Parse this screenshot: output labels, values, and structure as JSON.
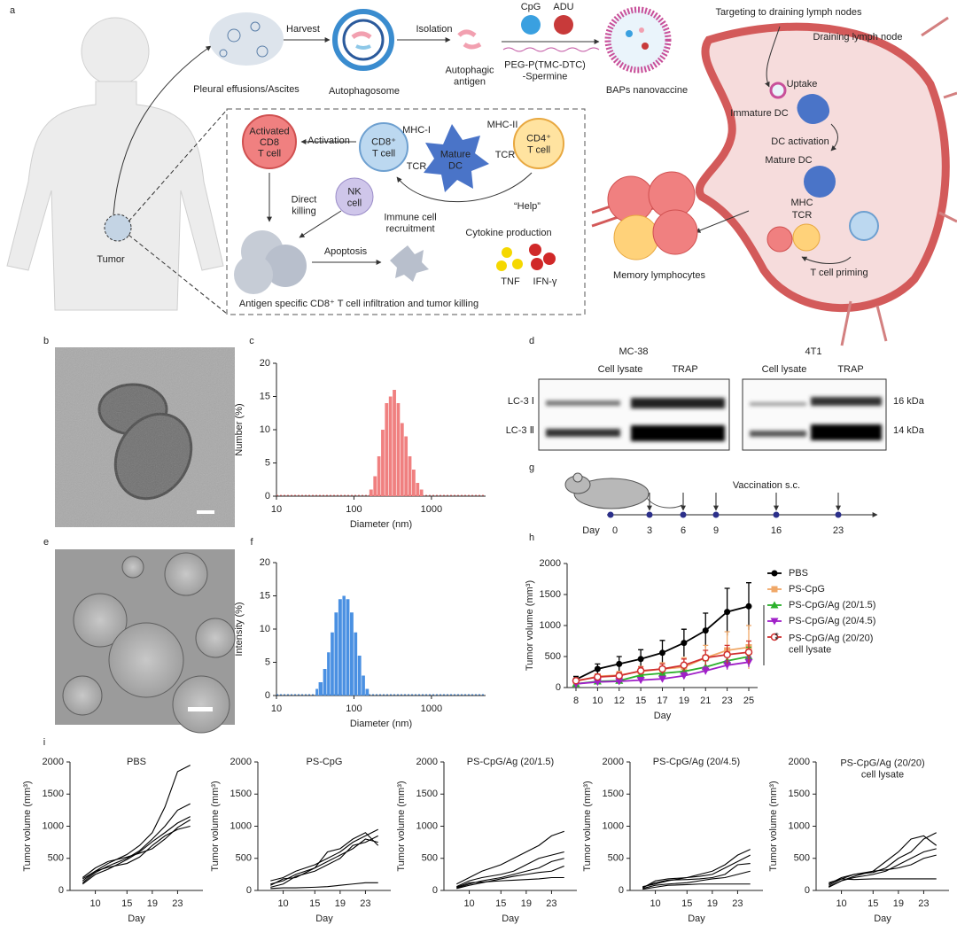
{
  "panel_labels": [
    "a",
    "b",
    "c",
    "d",
    "e",
    "f",
    "g",
    "h",
    "i"
  ],
  "diagram": {
    "harvest": "Harvest",
    "isolation": "Isolation",
    "cpg": "CpG",
    "adu": "ADU",
    "pleural": "Pleural effusions/Ascites",
    "autophagosome": "Autophagosome",
    "autophagic_antigen": "Autophagic\nantigen",
    "polymer": "PEG-P(TMC-DTC)\n-Spermine",
    "baps": "BAPs nanovaccine",
    "targeting": "Targeting to draining lymph nodes",
    "draining_ln": "Draining lymph node",
    "uptake": "Uptake",
    "immature_dc": "Immature DC",
    "dc_activation": "DC activation",
    "mature_dc": "Mature DC",
    "mhc": "MHC",
    "tcr": "TCR",
    "t_cell_priming": "T cell priming",
    "memory": "Memory lymphocytes",
    "tumor": "Tumor",
    "activation": "Activation",
    "mhc_i": "MHC-I",
    "mhc_ii": "MHC-II",
    "activated_cd8": "Activated\nCD8\nT cell",
    "cd8_t": "CD8⁺\nT cell",
    "mature_dc_box": "Mature\nDC",
    "cd4_t": "CD4⁺\nT cell",
    "tcr_1": "TCR",
    "tcr_2": "TCR",
    "direct_killing": "Direct\nkilling",
    "nk_cell": "NK\ncell",
    "recruitment": "Immune cell\nrecruitment",
    "help": "“Help”",
    "cytokine": "Cytokine production",
    "apoptosis": "Apoptosis",
    "tnf": "TNF",
    "ifn": "IFN-γ",
    "infiltration": "Antigen specific CD8⁺ T cell infiltration and tumor killing"
  },
  "blot": {
    "mc38": "MC-38",
    "t4t1": "4T1",
    "cell_lysate_1": "Cell lysate",
    "trap_1": "TRAP",
    "cell_lysate_2": "Cell lysate",
    "trap_2": "TRAP",
    "lc3_i": "LC-3 Ⅰ",
    "lc3_ii": "LC-3 Ⅱ",
    "kda_16": "16 kDa",
    "kda_14": "14 kDa"
  },
  "timeline": {
    "vaccination": "Vaccination s.c.",
    "day_label": "Day",
    "days": [
      0,
      3,
      6,
      9,
      16,
      23
    ]
  },
  "chart_data": [
    {
      "type": "histogram",
      "y_label": "Number (%)",
      "x_label": "Diameter (nm)",
      "log_x": true,
      "color": "#f08080",
      "bins": [
        158,
        178,
        200,
        224,
        251,
        282,
        316,
        355,
        398,
        447,
        501,
        562,
        631,
        708,
        794
      ],
      "values": [
        1,
        3,
        6,
        10,
        14,
        15,
        16,
        14,
        11,
        9,
        6,
        4,
        2,
        1
      ],
      "xlim": [
        10,
        5000
      ],
      "xticks": [
        10,
        100,
        1000
      ],
      "ylim": [
        0,
        20
      ],
      "yticks": [
        0,
        5,
        10,
        15,
        20
      ]
    },
    {
      "type": "histogram",
      "y_label": "Intensity (%)",
      "x_label": "Diameter  (nm)",
      "log_x": true,
      "color": "#4a90e2",
      "bins": [
        32,
        35,
        40,
        45,
        50,
        56,
        63,
        71,
        79,
        89,
        100,
        112,
        126,
        141,
        158
      ],
      "values": [
        1,
        2,
        4,
        6.5,
        9.5,
        12.5,
        14.5,
        15,
        14.5,
        12.5,
        9.5,
        6,
        3,
        1
      ],
      "xlim": [
        10,
        5000
      ],
      "xticks": [
        10,
        100,
        1000
      ],
      "ylim": [
        0,
        20
      ],
      "yticks": [
        0,
        5,
        10,
        15,
        20
      ]
    },
    {
      "type": "line",
      "y_label": "Tumor volume (mm³)",
      "x_label": "Day",
      "annotation": "**",
      "categories": [
        8,
        10,
        12,
        15,
        17,
        19,
        21,
        23,
        25
      ],
      "ylim": [
        0,
        2000
      ],
      "yticks": [
        0,
        500,
        1000,
        1500,
        2000
      ],
      "series": [
        {
          "name": "PBS",
          "color": "#000000",
          "marker": "circle",
          "values": [
            130,
            300,
            380,
            460,
            560,
            720,
            920,
            1220,
            1310
          ],
          "error": [
            50,
            80,
            120,
            150,
            200,
            220,
            280,
            380,
            380
          ]
        },
        {
          "name": "PS-CpG",
          "color": "#f0a868",
          "marker": "square",
          "values": [
            100,
            180,
            200,
            260,
            300,
            330,
            480,
            600,
            650
          ],
          "error": [
            30,
            40,
            60,
            80,
            100,
            150,
            200,
            300,
            350
          ]
        },
        {
          "name": "PS-CpG/Ag (20/1.5)",
          "color": "#2bb02b",
          "marker": "triangle-up",
          "values": [
            60,
            100,
            110,
            200,
            230,
            260,
            330,
            430,
            500
          ],
          "error": [
            20,
            30,
            30,
            60,
            60,
            80,
            100,
            120,
            150
          ]
        },
        {
          "name": "PS-CpG/Ag (20/4.5)",
          "color": "#a020c8",
          "marker": "triangle-down",
          "values": [
            60,
            90,
            100,
            120,
            140,
            190,
            270,
            360,
            410
          ],
          "error": [
            20,
            20,
            30,
            40,
            40,
            50,
            60,
            70,
            80
          ]
        },
        {
          "name": "PS-CpG/Ag  (20/20)\ncell lysate",
          "color": "#d03030",
          "marker": "circle-open",
          "values": [
            110,
            170,
            190,
            270,
            300,
            360,
            480,
            530,
            570
          ],
          "error": [
            30,
            40,
            50,
            60,
            80,
            100,
            120,
            150,
            180
          ]
        }
      ]
    },
    {
      "type": "line",
      "title": "PBS",
      "y_label": "Tumor volume (mm³)",
      "x_label": "Day",
      "color": "#000000",
      "x": [
        8,
        10,
        12,
        15,
        17,
        19,
        21,
        23,
        25
      ],
      "xlim": [
        6,
        27
      ],
      "xticks": [
        10,
        15,
        19,
        23
      ],
      "ylim": [
        0,
        2000
      ],
      "yticks": [
        0,
        500,
        1000,
        1500,
        2000
      ],
      "series": [
        {
          "values": [
            180,
            300,
            420,
            560,
            700,
            900,
            1300,
            1850,
            1950
          ]
        },
        {
          "values": [
            120,
            280,
            380,
            500,
            620,
            800,
            1000,
            1250,
            1350
          ]
        },
        {
          "values": [
            100,
            250,
            330,
            480,
            600,
            760,
            900,
            1050,
            1150
          ]
        },
        {
          "values": [
            150,
            300,
            360,
            420,
            520,
            700,
            850,
            950,
            1000
          ]
        },
        {
          "values": [
            200,
            350,
            450,
            520,
            580,
            650,
            800,
            980,
            1100
          ]
        }
      ]
    },
    {
      "type": "line",
      "title": "PS-CpG",
      "y_label": "Tumor volume (mm³)",
      "x_label": "Day",
      "color": "#000000",
      "x": [
        8,
        10,
        12,
        15,
        17,
        19,
        21,
        23,
        25
      ],
      "xlim": [
        6,
        27
      ],
      "xticks": [
        10,
        15,
        19,
        23
      ],
      "ylim": [
        0,
        2000
      ],
      "yticks": [
        0,
        500,
        1000,
        1500,
        2000
      ],
      "series": [
        {
          "values": [
            150,
            200,
            300,
            400,
            500,
            600,
            750,
            850,
            950
          ]
        },
        {
          "values": [
            100,
            150,
            250,
            350,
            600,
            650,
            800,
            900,
            700
          ]
        },
        {
          "values": [
            80,
            180,
            200,
            350,
            450,
            550,
            650,
            800,
            750
          ]
        },
        {
          "values": [
            50,
            100,
            220,
            300,
            400,
            500,
            700,
            750,
            850
          ]
        },
        {
          "values": [
            30,
            40,
            40,
            50,
            60,
            80,
            100,
            120,
            120
          ]
        }
      ]
    },
    {
      "type": "line",
      "title": "PS-CpG/Ag (20/1.5)",
      "y_label": "Tumor volume (mm³)",
      "x_label": "Day",
      "color": "#000000",
      "x": [
        8,
        10,
        12,
        15,
        17,
        19,
        21,
        23,
        25
      ],
      "xlim": [
        6,
        27
      ],
      "xticks": [
        10,
        15,
        19,
        23
      ],
      "ylim": [
        0,
        2000
      ],
      "yticks": [
        0,
        500,
        1000,
        1500,
        2000
      ],
      "series": [
        {
          "values": [
            100,
            200,
            300,
            400,
            500,
            600,
            700,
            850,
            920
          ]
        },
        {
          "values": [
            60,
            150,
            200,
            250,
            300,
            400,
            500,
            550,
            600
          ]
        },
        {
          "values": [
            40,
            100,
            150,
            200,
            250,
            300,
            350,
            450,
            500
          ]
        },
        {
          "values": [
            30,
            80,
            120,
            180,
            220,
            250,
            280,
            300,
            380
          ]
        },
        {
          "values": [
            50,
            120,
            130,
            150,
            160,
            170,
            180,
            200,
            200
          ]
        }
      ]
    },
    {
      "type": "line",
      "title": "PS-CpG/Ag (20/4.5)",
      "y_label": "Tumor volume (mm³)",
      "x_label": "Day",
      "color": "#000000",
      "x": [
        8,
        10,
        12,
        15,
        17,
        19,
        21,
        23,
        25
      ],
      "xlim": [
        6,
        27
      ],
      "xticks": [
        10,
        15,
        19,
        23
      ],
      "ylim": [
        0,
        2000
      ],
      "yticks": [
        0,
        500,
        1000,
        1500,
        2000
      ],
      "series": [
        {
          "values": [
            60,
            100,
            150,
            200,
            250,
            300,
            400,
            550,
            640
          ]
        },
        {
          "values": [
            40,
            150,
            180,
            200,
            220,
            250,
            350,
            450,
            550
          ]
        },
        {
          "values": [
            50,
            120,
            160,
            170,
            180,
            200,
            250,
            400,
            420
          ]
        },
        {
          "values": [
            30,
            80,
            100,
            120,
            150,
            180,
            200,
            250,
            300
          ]
        },
        {
          "values": [
            20,
            50,
            80,
            90,
            100,
            100,
            100,
            100,
            100
          ]
        }
      ]
    },
    {
      "type": "line",
      "title": "PS-CpG/Ag  (20/20)\ncell lysate",
      "y_label": "Tumor volume (mm³)",
      "x_label": "Day",
      "color": "#000000",
      "x": [
        8,
        10,
        12,
        15,
        17,
        19,
        21,
        23,
        25
      ],
      "xlim": [
        6,
        27
      ],
      "xticks": [
        10,
        15,
        19,
        23
      ],
      "ylim": [
        0,
        2000
      ],
      "yticks": [
        0,
        500,
        1000,
        1500,
        2000
      ],
      "series": [
        {
          "values": [
            100,
            200,
            250,
            300,
            450,
            600,
            800,
            850,
            700
          ]
        },
        {
          "values": [
            80,
            180,
            250,
            280,
            350,
            500,
            600,
            800,
            900
          ]
        },
        {
          "values": [
            60,
            150,
            200,
            250,
            300,
            400,
            500,
            600,
            650
          ]
        },
        {
          "values": [
            50,
            150,
            220,
            300,
            320,
            350,
            400,
            500,
            550
          ]
        },
        {
          "values": [
            120,
            180,
            170,
            180,
            180,
            180,
            180,
            180,
            180
          ]
        }
      ]
    }
  ]
}
